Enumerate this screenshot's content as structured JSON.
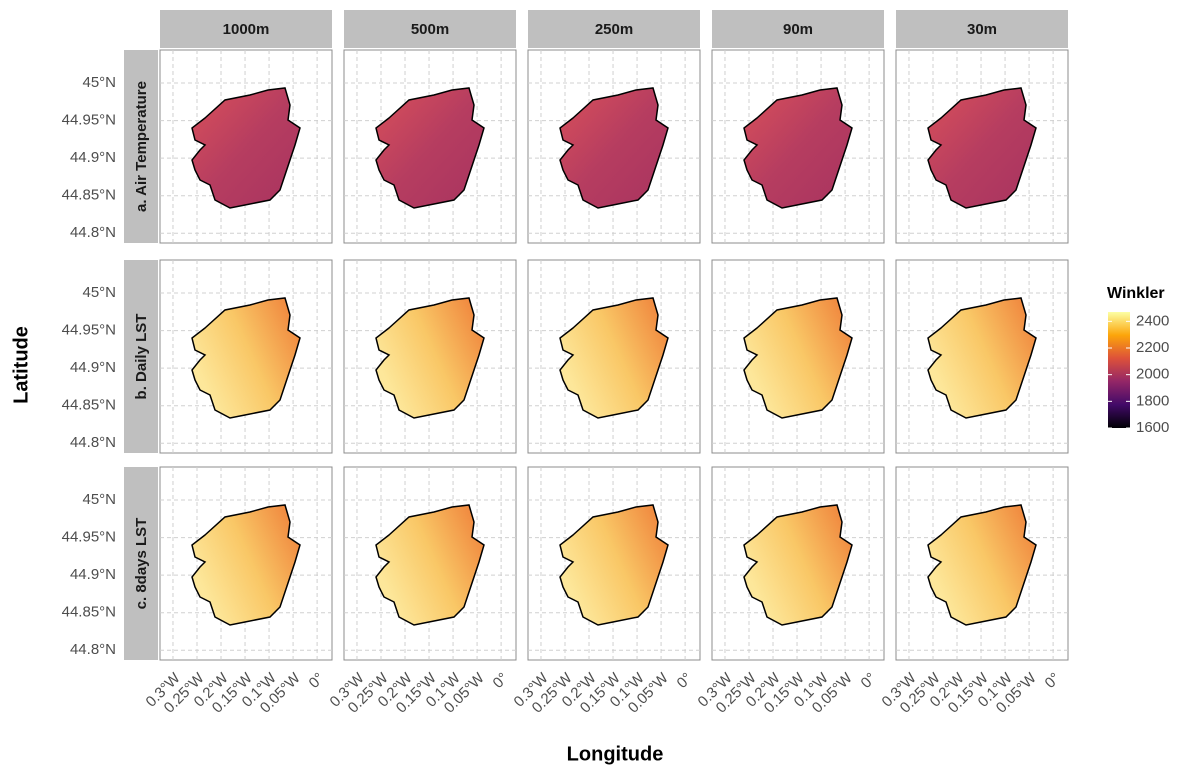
{
  "chart_data": {
    "type": "map",
    "x_label": "Longitude",
    "y_label": "Latitude",
    "columns": [
      "1000m",
      "500m",
      "250m",
      "90m",
      "30m"
    ],
    "rows": [
      "a. Air Temperature",
      "b. Daily LST",
      "c. 8days LST"
    ],
    "xlim": [
      -0.327,
      0.031
    ],
    "xticks": [
      {
        "value": -0.3,
        "label": "0.3°W"
      },
      {
        "value": -0.25,
        "label": "0.25°W"
      },
      {
        "value": -0.2,
        "label": "0.2°W"
      },
      {
        "value": -0.15,
        "label": "0.15°W"
      },
      {
        "value": -0.1,
        "label": "0.1°W"
      },
      {
        "value": -0.05,
        "label": "0.05°W"
      },
      {
        "value": 0,
        "label": "0°"
      }
    ],
    "ylim": [
      44.787,
      45.044
    ],
    "yticks": [
      {
        "value": 44.8,
        "label": "44.8°N"
      },
      {
        "value": 44.85,
        "label": "44.85°N"
      },
      {
        "value": 44.9,
        "label": "44.9°N"
      },
      {
        "value": 44.95,
        "label": "44.95°N"
      },
      {
        "value": 45,
        "label": "45°N"
      }
    ],
    "grid": true,
    "legend": {
      "title": "Winkler",
      "range": [
        1600,
        2470
      ],
      "ticks": [
        1600,
        1800,
        2000,
        2200,
        2400
      ],
      "colors": [
        "#000004",
        "#420a68",
        "#932667",
        "#dd513a",
        "#fca50a",
        "#fcffa4"
      ]
    }
  }
}
